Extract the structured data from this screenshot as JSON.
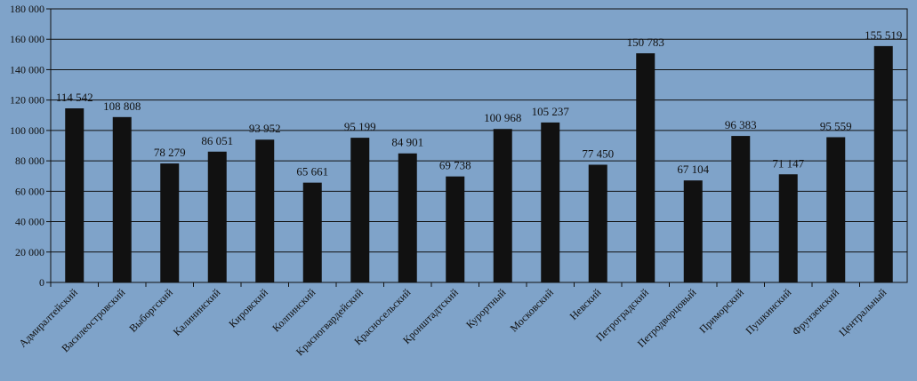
{
  "chart_data": {
    "type": "bar",
    "title": "",
    "xlabel": "",
    "ylabel": "",
    "ylim": [
      0,
      180000
    ],
    "yticks": [
      0,
      20000,
      40000,
      60000,
      80000,
      100000,
      120000,
      140000,
      160000,
      180000
    ],
    "ytick_labels": [
      "0",
      "20 000",
      "40 000",
      "60 000",
      "80 000",
      "100 000",
      "120 000",
      "140 000",
      "160 000",
      "180 000"
    ],
    "grid": true,
    "legend": "none",
    "bar_color": "#111111",
    "background_color": "#7fa3c9",
    "categories": [
      "Адмиралтейский",
      "Василеостровский",
      "Выборгский",
      "Калининский",
      "Кировский",
      "Колпинский",
      "Красногвардейский",
      "Красносельский",
      "Кронштадтский",
      "Курортный",
      "Московский",
      "Невский",
      "Петроградский",
      "Петродворцовый",
      "Приморский",
      "Пушкинский",
      "Фрунзенский",
      "Центральный"
    ],
    "values": [
      114542,
      108808,
      78279,
      86051,
      93952,
      65661,
      95199,
      84901,
      69738,
      100968,
      105237,
      77450,
      150783,
      67104,
      96383,
      71147,
      95559,
      155519
    ],
    "value_labels": [
      "114 542",
      "108 808",
      "78 279",
      "86 051",
      "93 952",
      "65 661",
      "95 199",
      "84 901",
      "69 738",
      "100 968",
      "105 237",
      "77 450",
      "150 783",
      "67 104",
      "96 383",
      "71 147",
      "95 559",
      "155 519"
    ]
  }
}
